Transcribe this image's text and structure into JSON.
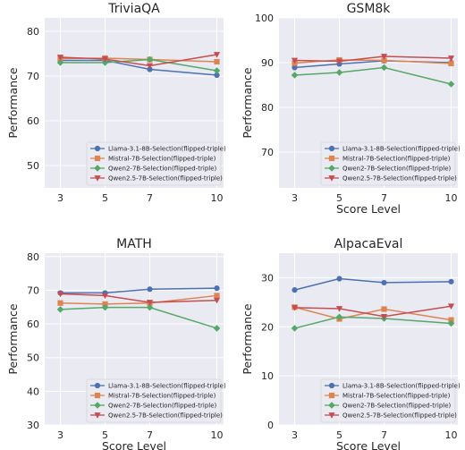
{
  "chart_data": [
    {
      "type": "line",
      "title": "TriviaQA",
      "xlabel": "",
      "ylabel": "Performance",
      "x": [
        3,
        5,
        7,
        10
      ],
      "xticks": [
        "3",
        "5",
        "7",
        "10"
      ],
      "ylim": [
        45,
        83
      ],
      "yticks": [
        50,
        60,
        70,
        80
      ],
      "legend_position": "lower-right",
      "series": [
        {
          "name": "Llama-3.1-8B-Selection(flipped-triple)",
          "color": "#4c72b0",
          "marker": "circle",
          "values": [
            73.5,
            73.5,
            71.5,
            70.2
          ]
        },
        {
          "name": "Mistral-7B-Selection(flipped-triple)",
          "color": "#dd8452",
          "marker": "square",
          "values": [
            73.9,
            74.0,
            73.7,
            73.2
          ]
        },
        {
          "name": "Qwen2-7B-Selection(flipped-triple)",
          "color": "#55a868",
          "marker": "diamond",
          "values": [
            73.0,
            73.0,
            73.7,
            71.2
          ]
        },
        {
          "name": "Qwen2.5-7B-Selection(flipped-triple)",
          "color": "#c44e52",
          "marker": "triangle-down",
          "values": [
            74.2,
            73.8,
            72.3,
            74.8
          ]
        }
      ]
    },
    {
      "type": "line",
      "title": "GSM8k",
      "xlabel": "Score Level",
      "ylabel": "Performance",
      "x": [
        3,
        5,
        7,
        10
      ],
      "xticks": [
        "3",
        "5",
        "7",
        "10"
      ],
      "ylim": [
        62,
        100
      ],
      "yticks": [
        70,
        80,
        90,
        100
      ],
      "legend_position": "lower-right",
      "series": [
        {
          "name": "Llama-3.1-8B-Selection(flipped-triple)",
          "color": "#4c72b0",
          "marker": "circle",
          "values": [
            88.9,
            89.7,
            90.4,
            90.0
          ]
        },
        {
          "name": "Mistral-7B-Selection(flipped-triple)",
          "color": "#dd8452",
          "marker": "square",
          "values": [
            89.9,
            90.6,
            90.5,
            89.8
          ]
        },
        {
          "name": "Qwen2-7B-Selection(flipped-triple)",
          "color": "#55a868",
          "marker": "diamond",
          "values": [
            87.2,
            87.8,
            88.9,
            85.2
          ]
        },
        {
          "name": "Qwen2.5-7B-Selection(flipped-triple)",
          "color": "#c44e52",
          "marker": "triangle-down",
          "values": [
            90.5,
            90.3,
            91.4,
            91.0
          ]
        }
      ]
    },
    {
      "type": "line",
      "title": "MATH",
      "xlabel": "Score Level",
      "ylabel": "Performance",
      "x": [
        3,
        5,
        7,
        10
      ],
      "xticks": [
        "3",
        "5",
        "7",
        "10"
      ],
      "ylim": [
        30,
        81
      ],
      "yticks": [
        30,
        40,
        50,
        60,
        70,
        80
      ],
      "legend_position": "lower-right",
      "series": [
        {
          "name": "Llama-3.1-8B-Selection(flipped-triple)",
          "color": "#4c72b0",
          "marker": "circle",
          "values": [
            69.2,
            69.2,
            70.3,
            70.6
          ]
        },
        {
          "name": "Mistral-7B-Selection(flipped-triple)",
          "color": "#dd8452",
          "marker": "square",
          "values": [
            66.2,
            65.9,
            66.2,
            68.4
          ]
        },
        {
          "name": "Qwen2-7B-Selection(flipped-triple)",
          "color": "#55a868",
          "marker": "diamond",
          "values": [
            64.3,
            64.9,
            64.9,
            58.7
          ]
        },
        {
          "name": "Qwen2.5-7B-Selection(flipped-triple)",
          "color": "#c44e52",
          "marker": "triangle-down",
          "values": [
            68.9,
            68.4,
            66.4,
            67.0
          ]
        }
      ]
    },
    {
      "type": "line",
      "title": "AlpacaEval",
      "xlabel": "Score Level",
      "ylabel": "Performance",
      "x": [
        3,
        5,
        7,
        10
      ],
      "xticks": [
        "3",
        "5",
        "7",
        "10"
      ],
      "ylim": [
        0,
        35
      ],
      "yticks": [
        0,
        10,
        20,
        30
      ],
      "legend_position": "lower-right",
      "series": [
        {
          "name": "Llama-3.1-8B-Selection(flipped-triple)",
          "color": "#4c72b0",
          "marker": "circle",
          "values": [
            27.5,
            29.8,
            29.0,
            29.2
          ]
        },
        {
          "name": "Mistral-7B-Selection(flipped-triple)",
          "color": "#dd8452",
          "marker": "square",
          "values": [
            24.0,
            21.6,
            23.6,
            21.4
          ]
        },
        {
          "name": "Qwen2-7B-Selection(flipped-triple)",
          "color": "#55a868",
          "marker": "diamond",
          "values": [
            19.7,
            22.0,
            21.7,
            20.7
          ]
        },
        {
          "name": "Qwen2.5-7B-Selection(flipped-triple)",
          "color": "#c44e52",
          "marker": "triangle-down",
          "values": [
            23.9,
            23.7,
            22.1,
            24.2
          ]
        }
      ]
    }
  ]
}
